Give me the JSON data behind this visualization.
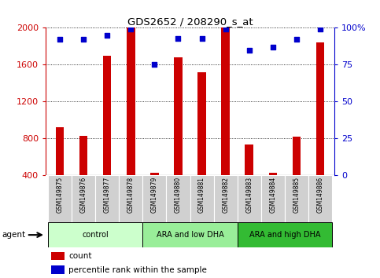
{
  "title": "GDS2652 / 208290_s_at",
  "samples": [
    "GSM149875",
    "GSM149876",
    "GSM149877",
    "GSM149878",
    "GSM149879",
    "GSM149880",
    "GSM149881",
    "GSM149882",
    "GSM149883",
    "GSM149884",
    "GSM149885",
    "GSM149886"
  ],
  "counts": [
    920,
    830,
    1700,
    2000,
    430,
    1680,
    1520,
    2000,
    730,
    430,
    820,
    1840
  ],
  "percentile_ranks": [
    92,
    92,
    95,
    99,
    75,
    93,
    93,
    99,
    85,
    87,
    92,
    99
  ],
  "bar_color": "#cc0000",
  "dot_color": "#0000cc",
  "ymin": 400,
  "ymax": 2000,
  "yticks": [
    400,
    800,
    1200,
    1600,
    2000
  ],
  "right_yticks": [
    0,
    25,
    50,
    75,
    100
  ],
  "right_ytick_labels": [
    "0",
    "25",
    "50",
    "75",
    "100%"
  ],
  "groups": [
    {
      "label": "control",
      "start": 0,
      "end": 3,
      "color": "#ccffcc"
    },
    {
      "label": "ARA and low DHA",
      "start": 4,
      "end": 7,
      "color": "#99ee99"
    },
    {
      "label": "ARA and high DHA",
      "start": 8,
      "end": 11,
      "color": "#33bb33"
    }
  ],
  "legend_count_color": "#cc0000",
  "legend_dot_color": "#0000cc",
  "legend_count_label": "count",
  "legend_dot_label": "percentile rank within the sample",
  "bar_width": 0.35,
  "plot_bg": "#ffffff",
  "label_bg": "#d0d0d0"
}
